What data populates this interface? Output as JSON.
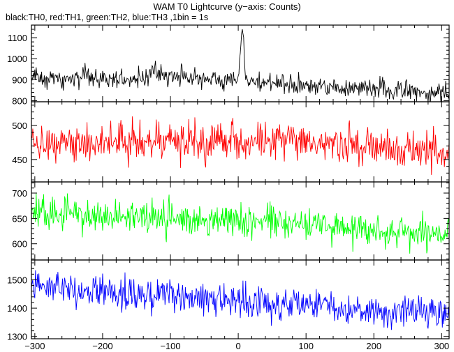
{
  "chart_data": {
    "title": "WAM T0 Lightcurve (y−axis: Counts)",
    "subtitle": "black:TH0, red:TH1, green:TH2, blue:TH3 ,1bin = 1s",
    "type": "line",
    "x_range": [
      -305,
      311
    ],
    "x_ticks": [
      -300,
      -200,
      -100,
      0,
      100,
      200,
      300
    ],
    "x_tick_labels": [
      "−300",
      "−200",
      "−100",
      "0",
      "100",
      "200",
      "300"
    ],
    "panels": [
      {
        "series_name": "TH0",
        "color": "#000000",
        "ylim": [
          795,
          1160
        ],
        "y_ticks": [
          800,
          900,
          1000,
          1100
        ],
        "baseline": {
          "x": [
            -300,
            -250,
            -200,
            -150,
            -100,
            -50,
            -20,
            0,
            20,
            60,
            100,
            150,
            200,
            250,
            300,
            311
          ],
          "y": [
            910,
            905,
            905,
            905,
            920,
            905,
            900,
            900,
            890,
            880,
            870,
            860,
            855,
            850,
            835,
            835
          ]
        },
        "bursts": [
          {
            "center": 6,
            "width": 2.5,
            "amplitude": 260
          },
          {
            "center": -125,
            "width": 4,
            "amplitude": 40
          }
        ],
        "noise": 32
      },
      {
        "series_name": "TH1",
        "color": "#ff0000",
        "ylim": [
          417,
          535
        ],
        "y_ticks": [
          450,
          500
        ],
        "baseline": {
          "x": [
            -300,
            -200,
            -100,
            0,
            100,
            200,
            300,
            311
          ],
          "y": [
            477,
            477,
            476,
            476,
            474,
            466,
            460,
            458
          ]
        },
        "bursts": [],
        "noise": 20
      },
      {
        "series_name": "TH2",
        "color": "#00ff00",
        "ylim": [
          568,
          722
        ],
        "y_ticks": [
          600,
          650,
          700
        ],
        "baseline": {
          "x": [
            -300,
            -250,
            -200,
            -100,
            0,
            100,
            200,
            300,
            311
          ],
          "y": [
            662,
            660,
            656,
            650,
            646,
            640,
            625,
            620,
            620
          ]
        },
        "bursts": [],
        "noise": 22
      },
      {
        "series_name": "TH3",
        "color": "#0000ff",
        "ylim": [
          1292,
          1570
        ],
        "y_ticks": [
          1300,
          1400,
          1500
        ],
        "baseline": {
          "x": [
            -300,
            -250,
            -200,
            -150,
            -100,
            0,
            100,
            200,
            300,
            311
          ],
          "y": [
            1470,
            1465,
            1460,
            1450,
            1445,
            1420,
            1410,
            1395,
            1385,
            1385
          ]
        },
        "bursts": [],
        "noise": 40
      }
    ]
  }
}
